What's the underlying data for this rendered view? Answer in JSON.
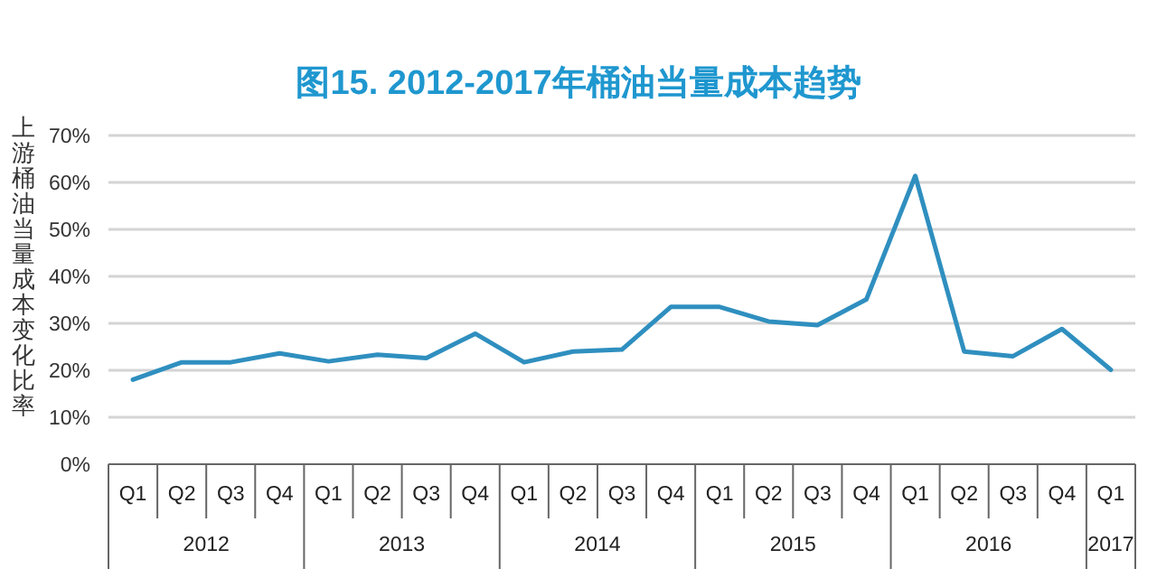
{
  "chart_data": {
    "type": "line",
    "title": "图15. 2012-2017年桶油当量成本趋势",
    "ylabel": "上游桶油当量成本变化比率",
    "categories": [
      "Q1",
      "Q2",
      "Q3",
      "Q4",
      "Q1",
      "Q2",
      "Q3",
      "Q4",
      "Q1",
      "Q2",
      "Q3",
      "Q4",
      "Q1",
      "Q2",
      "Q3",
      "Q4",
      "Q1",
      "Q2",
      "Q3",
      "Q4",
      "Q1"
    ],
    "annotations": [
      "2012",
      "2013",
      "2014",
      "2015",
      "2016",
      "2017"
    ],
    "series": [
      {
        "color": "#2f8fbf",
        "values": [
          18,
          21.7,
          21.7,
          23.6,
          21.9,
          23.3,
          22.6,
          27.8,
          21.7,
          24.0,
          24.4,
          33.5,
          33.5,
          30.4,
          29.6,
          35.1,
          61.4,
          24.0,
          23.0,
          28.8,
          20.1
        ]
      }
    ],
    "ylim": [
      0,
      70
    ],
    "yticks": [
      {
        "value": 0,
        "label": "0%"
      },
      {
        "value": 10,
        "label": "10%"
      },
      {
        "value": 20,
        "label": "20%"
      },
      {
        "value": 30,
        "label": "30%"
      },
      {
        "value": 40,
        "label": "40%"
      },
      {
        "value": 50,
        "label": "50%"
      },
      {
        "value": 60,
        "label": "60%"
      },
      {
        "value": 70,
        "label": "70%"
      }
    ],
    "grid": "y",
    "marker": "none",
    "line_style": "solid"
  }
}
